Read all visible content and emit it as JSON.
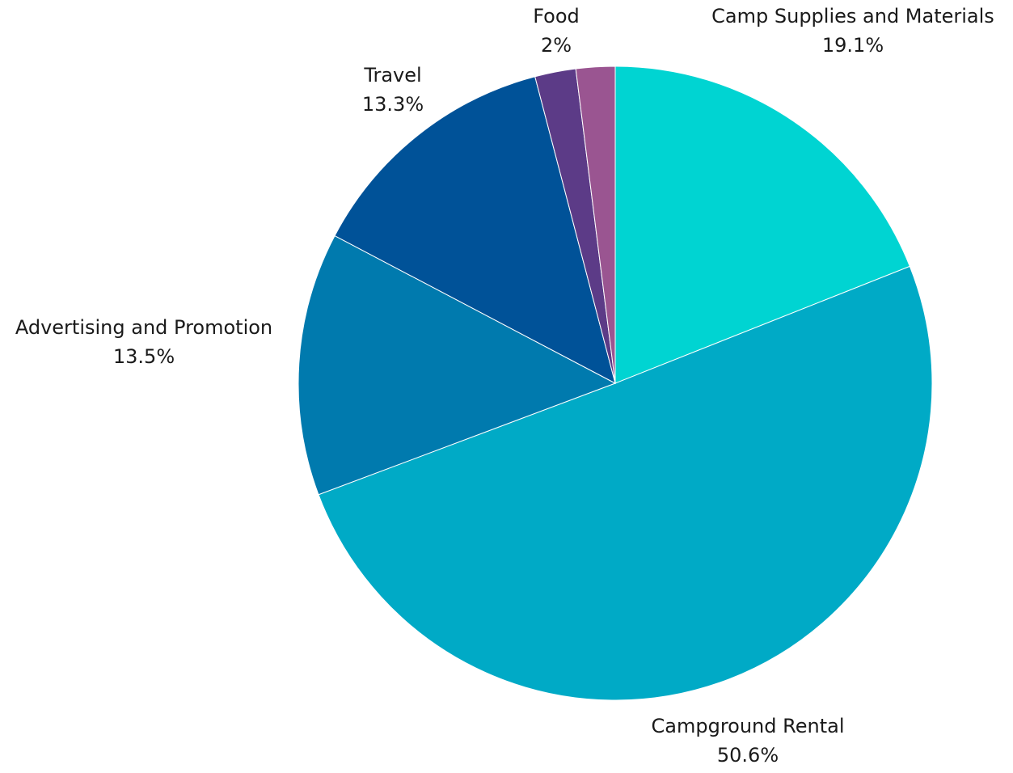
{
  "chart_data": {
    "type": "pie",
    "title": "",
    "start_angle_deg": 0,
    "direction": "clockwise",
    "slice_border_color": "#ffffff",
    "slices": [
      {
        "label": "Camp Supplies and Materials",
        "value": 19.1,
        "value_label": "19.1%",
        "color": "#00D4D2"
      },
      {
        "label": "Campground Rental",
        "value": 50.6,
        "value_label": "50.6%",
        "color": "#00AAC6"
      },
      {
        "label": "Advertising and Promotion",
        "value": 13.5,
        "value_label": "13.5%",
        "color": "#007AAE"
      },
      {
        "label": "Travel",
        "value": 13.3,
        "value_label": "13.3%",
        "color": "#005298"
      },
      {
        "label": "",
        "value": 2.1,
        "value_label": "",
        "color": "#5C3B87"
      },
      {
        "label": "Food",
        "value": 2,
        "value_label": "2%",
        "color": "#9A5591"
      }
    ]
  }
}
